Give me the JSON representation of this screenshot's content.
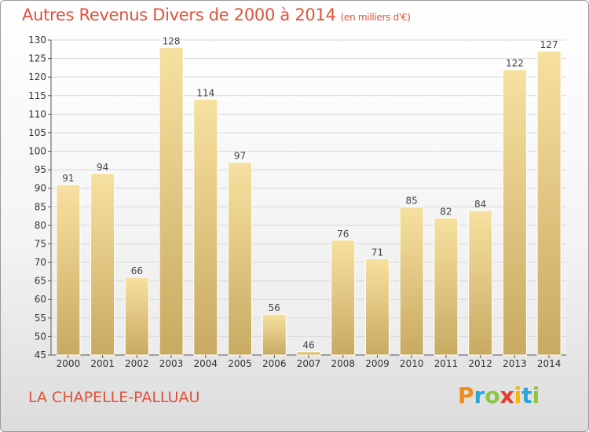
{
  "header": {
    "title": "Autres Revenus Divers de 2000 à 2014",
    "unit": "(en milliers d'€)"
  },
  "footer": {
    "commune": "LA CHAPELLE-PALLUAU",
    "logo_letters": [
      "P",
      "r",
      "o",
      "x",
      "i",
      "t",
      "i"
    ],
    "logo_colors": [
      "#f08a1c",
      "#2aa5d8",
      "#8cc63f",
      "#e8392c",
      "#f7b500",
      "#2aa5d8",
      "#8cc63f"
    ]
  },
  "colors": {
    "title": "#e0523b",
    "bar_light": "#f7e1a0",
    "bar_dark": "#c8aa62",
    "grid": "#d8d8d8"
  },
  "chart_data": {
    "type": "bar",
    "title": "Autres Revenus Divers de 2000 à 2014",
    "subtitle": "(en milliers d'€)",
    "xlabel": "",
    "ylabel": "",
    "categories": [
      "2000",
      "2001",
      "2002",
      "2003",
      "2004",
      "2005",
      "2006",
      "2007",
      "2008",
      "2009",
      "2010",
      "2011",
      "2012",
      "2013",
      "2014"
    ],
    "values": [
      91,
      94,
      66,
      128,
      114,
      97,
      56,
      46,
      76,
      71,
      85,
      82,
      84,
      122,
      127
    ],
    "ylim": [
      45,
      130
    ],
    "yticks": [
      45,
      50,
      55,
      60,
      65,
      70,
      75,
      80,
      85,
      90,
      95,
      100,
      105,
      110,
      115,
      120,
      125,
      130
    ],
    "grid": true,
    "legend": "none"
  }
}
